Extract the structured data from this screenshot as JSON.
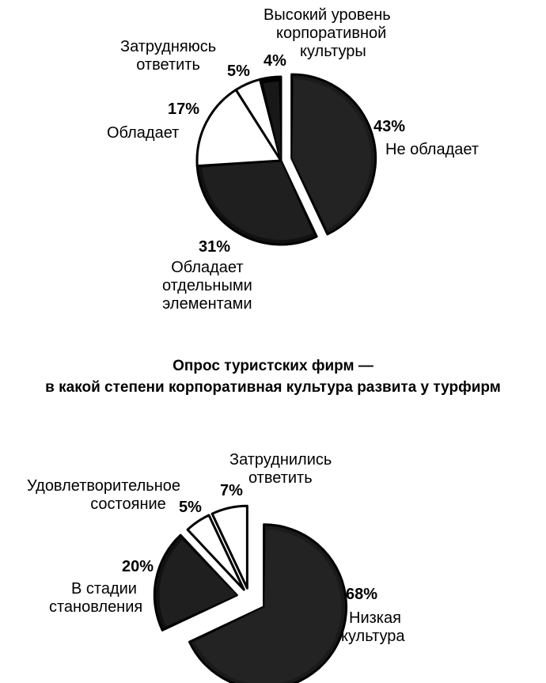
{
  "chart_data": [
    {
      "type": "pie",
      "title": "",
      "slices": [
        {
          "label": "Не обладает",
          "value": 43,
          "display": "43%",
          "fill": "#1a1a1a",
          "exploded": true
        },
        {
          "label": "Обладает отдельными элементами",
          "value": 31,
          "display": "31%",
          "fill": "#111111",
          "exploded": false
        },
        {
          "label": "Обладает",
          "value": 17,
          "display": "17%",
          "fill": "#ffffff",
          "exploded": false
        },
        {
          "label": "Затрудняюсь ответить",
          "value": 5,
          "display": "5%",
          "fill": "#ffffff",
          "exploded": false
        },
        {
          "label": "Высокий уровень корпоративной культуры",
          "value": 4,
          "display": "4%",
          "fill": "#000000",
          "exploded": false
        }
      ]
    },
    {
      "type": "pie",
      "title": "Опрос туристских фирм — в какой степени корпоративная культура развита у турфирм",
      "title_lines": [
        "Опрос туристских фирм —",
        "в какой степени корпоративная культура развита у турфирм"
      ],
      "slices": [
        {
          "label": "Низкая культура",
          "value": 68,
          "display": "68%",
          "fill": "#1a1a1a",
          "exploded": true
        },
        {
          "label": "В стадии становления",
          "value": 20,
          "display": "20%",
          "fill": "#111111",
          "exploded": true
        },
        {
          "label": "Удовлетворительное состояние",
          "value": 5,
          "display": "5%",
          "fill": "#ffffff",
          "exploded": true
        },
        {
          "label": "Затруднились ответить",
          "value": 7,
          "display": "7%",
          "fill": "#ffffff",
          "exploded": true
        }
      ]
    }
  ],
  "labels": {
    "p1": {
      "s0": [
        "Не обладает"
      ],
      "s1": [
        "Обладает",
        "отдельными",
        "элементами"
      ],
      "s2": [
        "Обладает"
      ],
      "s3": [
        "Затрудняюсь",
        "ответить"
      ],
      "s4": [
        "Высокий уровень",
        "корпоративной",
        "культуры"
      ]
    },
    "p2": {
      "s0": [
        "Низкая",
        "культура"
      ],
      "s1": [
        "В стадии",
        "становления"
      ],
      "s2": [
        "Удовлетворительное",
        "состояние"
      ],
      "s3": [
        "Затруднились",
        "ответить"
      ]
    }
  }
}
